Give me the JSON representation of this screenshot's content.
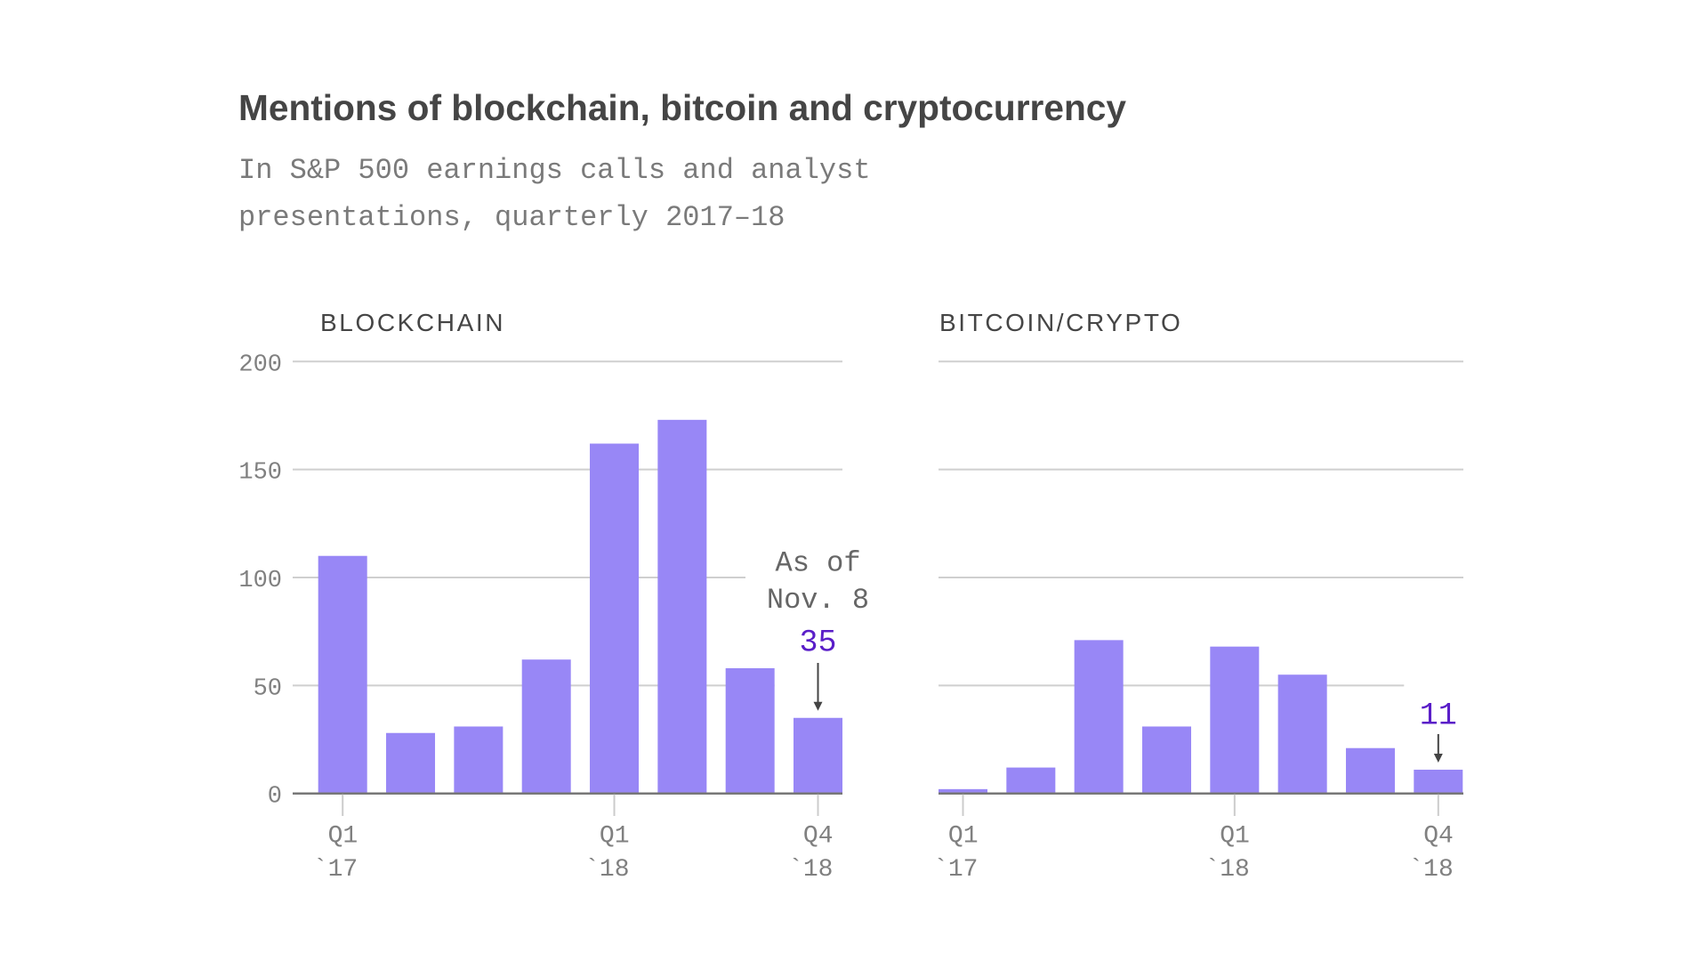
{
  "chart_data": {
    "title": "Mentions of blockchain, bitcoin and cryptocurrency",
    "subtitle_lines": [
      "In S&P 500 earnings calls and analyst",
      "presentations, quarterly 2017–18"
    ],
    "type": "bar",
    "colors": {
      "bar": "#9887f6",
      "highlight_label": "#5a1ec8",
      "text": "#454545",
      "muted_text": "#7a7a7a"
    },
    "panels": [
      {
        "name": "BLOCKCHAIN",
        "categories": [
          "Q1 2017",
          "Q2 2017",
          "Q3 2017",
          "Q4 2017",
          "Q1 2018",
          "Q2 2018",
          "Q3 2018",
          "Q4 2018"
        ],
        "values": [
          110,
          28,
          31,
          62,
          162,
          173,
          58,
          35
        ],
        "ylim": [
          0,
          200
        ],
        "yticks": [
          "0",
          "50",
          "100",
          "150",
          "200"
        ],
        "ytick_values": [
          0,
          50,
          100,
          150,
          200
        ],
        "show_ytick_labels": true,
        "xtick_labels": [
          {
            "index": 0,
            "line1": "Q1",
            "line2": "`17"
          },
          {
            "index": 4,
            "line1": "Q1",
            "line2": "`18"
          },
          {
            "index": 7,
            "line1": "Q4",
            "line2": "`18"
          }
        ],
        "annotation": {
          "index": 7,
          "note_lines": [
            "As of",
            "Nov. 8"
          ],
          "value_label": "35"
        }
      },
      {
        "name": "BITCOIN/CRYPTO",
        "categories": [
          "Q1 2017",
          "Q2 2017",
          "Q3 2017",
          "Q4 2017",
          "Q1 2018",
          "Q2 2018",
          "Q3 2018",
          "Q4 2018"
        ],
        "values": [
          2,
          12,
          71,
          31,
          68,
          55,
          21,
          11
        ],
        "ylim": [
          0,
          200
        ],
        "ytick_values": [
          0,
          50,
          100,
          150,
          200
        ],
        "show_ytick_labels": false,
        "xtick_labels": [
          {
            "index": 0,
            "line1": "Q1",
            "line2": "`17"
          },
          {
            "index": 4,
            "line1": "Q1",
            "line2": "`18"
          },
          {
            "index": 7,
            "line1": "Q4",
            "line2": "`18"
          }
        ],
        "annotation": {
          "index": 7,
          "note_lines": [],
          "value_label": "11"
        }
      }
    ],
    "grid": true,
    "legend": "none"
  }
}
